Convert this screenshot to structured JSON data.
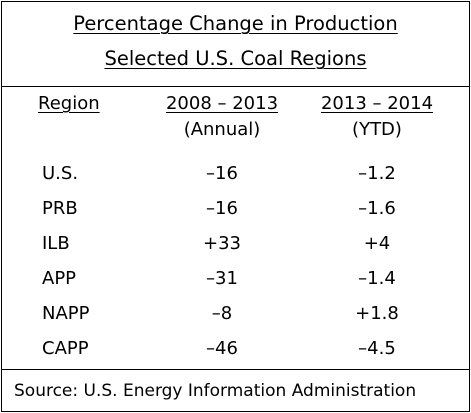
{
  "title": {
    "line1": "Percentage Change in Production",
    "line2": "Selected U.S. Coal Regions"
  },
  "columns": {
    "region": "Region",
    "period1": {
      "label": "2008 – 2013",
      "sublabel": "(Annual)"
    },
    "period2": {
      "label": "2013 – 2014",
      "sublabel": "(YTD)"
    }
  },
  "rows": [
    {
      "region": "U.S.",
      "change_2008_2013": "–16",
      "change_2013_2014": "–1.2"
    },
    {
      "region": "PRB",
      "change_2008_2013": "–16",
      "change_2013_2014": "–1.6"
    },
    {
      "region": "ILB",
      "change_2008_2013": "+33",
      "change_2013_2014": "+4"
    },
    {
      "region": "APP",
      "change_2008_2013": "–31",
      "change_2013_2014": "–1.4"
    },
    {
      "region": "NAPP",
      "change_2008_2013": "–8",
      "change_2013_2014": "+1.8"
    },
    {
      "region": "CAPP",
      "change_2008_2013": "–46",
      "change_2013_2014": "–4.5"
    }
  ],
  "source": "Source: U.S. Energy Information Administration"
}
